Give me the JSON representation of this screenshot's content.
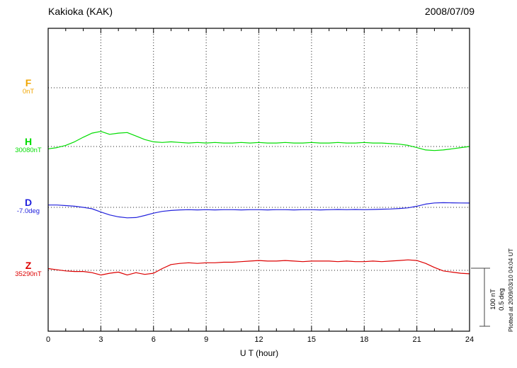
{
  "header": {
    "station": "Kakioka (KAK)",
    "date": "2008/07/09"
  },
  "axis": {
    "xlabel": "U T (hour)",
    "tick_labels": [
      "0",
      "3",
      "6",
      "9",
      "12",
      "15",
      "18",
      "21",
      "24"
    ]
  },
  "channels": [
    {
      "id": "F",
      "label": "F",
      "value_label": "0nT",
      "color": "#f0a500"
    },
    {
      "id": "H",
      "label": "H",
      "value_label": "30080nT",
      "color": "#00dd00"
    },
    {
      "id": "D",
      "label": "D",
      "value_label": "-7.0deg",
      "color": "#2222dd"
    },
    {
      "id": "Z",
      "label": "Z",
      "value_label": "35290nT",
      "color": "#dd0000"
    }
  ],
  "scale_bar": {
    "line1": "100 nT",
    "line2": "0.5 deg"
  },
  "plot_note": "Plotted at 2009/03/10 04:04 UT",
  "chart_data": {
    "type": "line",
    "title": "Kakioka (KAK) magnetogram 2008/07/09",
    "xlabel": "U T (hour)",
    "x_range": [
      0,
      24
    ],
    "x_ticks": [
      0,
      3,
      6,
      9,
      12,
      15,
      18,
      21,
      24
    ],
    "grid": "dotted vertical at 3h intervals, dotted horizontal baseline per channel",
    "scale_reference": {
      "nT": 100,
      "deg": 0.5
    },
    "series": [
      {
        "name": "F",
        "unit": "nT",
        "baseline_value": "0nT",
        "color": "#f0a500",
        "x_start": 0,
        "x_step": 0.5,
        "offsets": []
      },
      {
        "name": "H",
        "unit": "nT",
        "baseline_value": "30080nT",
        "color": "#00dd00",
        "x_start": 0,
        "x_step": 0.5,
        "offsets": [
          -4,
          -2,
          2,
          8,
          16,
          23,
          26,
          21,
          23,
          24,
          18,
          12,
          8,
          7,
          8,
          7,
          6,
          7,
          6,
          7,
          6,
          6,
          7,
          6,
          7,
          6,
          6,
          7,
          6,
          6,
          7,
          6,
          6,
          7,
          6,
          6,
          7,
          6,
          6,
          5,
          4,
          2,
          -2,
          -6,
          -7,
          -6,
          -4,
          -2,
          0
        ]
      },
      {
        "name": "D",
        "unit": "deg",
        "baseline_value": "-7.0deg",
        "color": "#2222dd",
        "x_start": 0,
        "x_step": 0.5,
        "offsets": [
          0.02,
          0.02,
          0.015,
          0.01,
          0.0,
          -0.012,
          -0.04,
          -0.065,
          -0.082,
          -0.09,
          -0.088,
          -0.07,
          -0.05,
          -0.035,
          -0.027,
          -0.022,
          -0.02,
          -0.022,
          -0.02,
          -0.022,
          -0.02,
          -0.02,
          -0.022,
          -0.02,
          -0.02,
          -0.022,
          -0.02,
          -0.02,
          -0.022,
          -0.02,
          -0.02,
          -0.022,
          -0.02,
          -0.018,
          -0.02,
          -0.018,
          -0.02,
          -0.018,
          -0.016,
          -0.014,
          -0.01,
          -0.004,
          0.01,
          0.028,
          0.038,
          0.04,
          0.039,
          0.038,
          0.037
        ]
      },
      {
        "name": "Z",
        "unit": "nT",
        "baseline_value": "35290nT",
        "color": "#dd0000",
        "x_start": 0,
        "x_step": 0.5,
        "offsets": [
          3,
          1,
          -1,
          -2,
          -2,
          -4,
          -8,
          -5,
          -3,
          -8,
          -4,
          -7,
          -5,
          3,
          10,
          12,
          13,
          12,
          13,
          13,
          14,
          14,
          15,
          16,
          17,
          16,
          16,
          17,
          16,
          15,
          16,
          16,
          16,
          15,
          16,
          15,
          15,
          16,
          15,
          16,
          17,
          18,
          17,
          12,
          5,
          -1,
          -3,
          -5,
          -6
        ]
      }
    ]
  }
}
